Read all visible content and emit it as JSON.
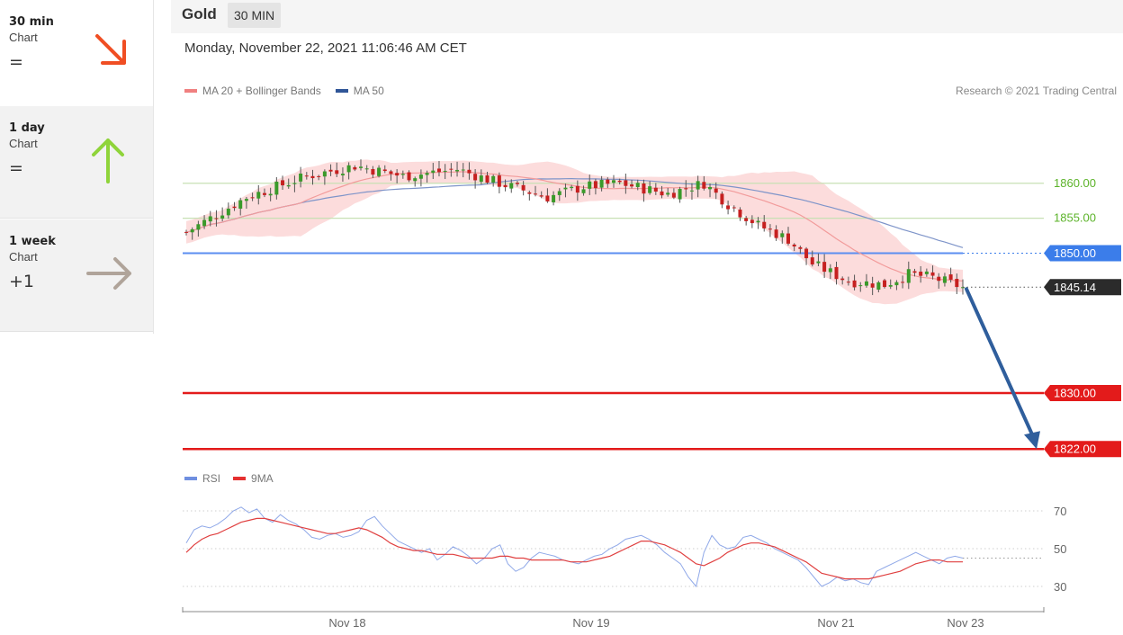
{
  "sidebar": {
    "items": [
      {
        "title": "30 min",
        "subtitle": "Chart",
        "score": "=",
        "icon": "arrow-down-right-icon",
        "color": "#f04e23"
      },
      {
        "title": "1 day",
        "subtitle": "Chart",
        "score": "=",
        "icon": "arrow-up-icon",
        "color": "#8fd43a"
      },
      {
        "title": "1 week",
        "subtitle": "Chart",
        "score": "+1",
        "icon": "arrow-right-icon",
        "color": "#b0a49a"
      }
    ]
  },
  "header": {
    "asset": "Gold",
    "timeframe": "30 MIN",
    "timestamp": "Monday, November 22, 2021 11:06:46 AM CET",
    "copyright": "Research © 2021 Trading Central"
  },
  "legend": [
    {
      "label": "MA 20 + Bollinger Bands",
      "color": "#f08080"
    },
    {
      "label": "MA 50",
      "color": "#2f5597"
    }
  ],
  "rsi_legend": [
    {
      "label": "RSI",
      "color": "#6f8fe0"
    },
    {
      "label": "9MA",
      "color": "#e53030"
    }
  ],
  "chart_data": {
    "type": "candlestick",
    "x_ticks": [
      "Nov 18",
      "Nov 19",
      "Nov 21",
      "Nov 23"
    ],
    "ylim": [
      1820,
      1866
    ],
    "levels": [
      {
        "label": "1860.00",
        "value": 1860,
        "kind": "resistance",
        "color": "#9cc87a"
      },
      {
        "label": "1855.00",
        "value": 1855,
        "kind": "resistance",
        "color": "#9cc87a"
      },
      {
        "label": "1850.00",
        "value": 1850,
        "kind": "pivot",
        "color": "#3b7dea"
      },
      {
        "label": "1830.00",
        "value": 1830,
        "kind": "support",
        "color": "#e31b1b"
      },
      {
        "label": "1822.00",
        "value": 1822,
        "kind": "support",
        "color": "#e31b1b"
      }
    ],
    "last_price": {
      "label": "1845.14",
      "value": 1845.14
    },
    "forecast": {
      "from": 1845.14,
      "to": 1822
    },
    "rsi": {
      "ticks": [
        70,
        50,
        30
      ],
      "ylim": [
        20,
        80
      ],
      "rsi_values": [
        53,
        60,
        62,
        61,
        63,
        66,
        70,
        72,
        69,
        71,
        66,
        64,
        68,
        65,
        63,
        60,
        56,
        55,
        57,
        58,
        56,
        57,
        59,
        65,
        67,
        62,
        58,
        54,
        52,
        50,
        48,
        50,
        44,
        47,
        51,
        49,
        46,
        42,
        45,
        50,
        52,
        42,
        38,
        40,
        45,
        48,
        47,
        46,
        44,
        43,
        42,
        44,
        46,
        47,
        50,
        52,
        55,
        56,
        57,
        55,
        52,
        48,
        45,
        42,
        35,
        30,
        48,
        57,
        52,
        50,
        51,
        56,
        57,
        55,
        53,
        50,
        48,
        46,
        44,
        40,
        35,
        30,
        32,
        35,
        33,
        34,
        32,
        31,
        38,
        40,
        42,
        44,
        46,
        48,
        46,
        44,
        42,
        45,
        46,
        45
      ],
      "ma_values": [
        48,
        52,
        55,
        57,
        58,
        60,
        62,
        64,
        65,
        66,
        66,
        65,
        64,
        63,
        62,
        61,
        60,
        59,
        58,
        58,
        59,
        60,
        61,
        60,
        58,
        56,
        53,
        51,
        50,
        49,
        49,
        48,
        47,
        47,
        47,
        46,
        45,
        45,
        45,
        45,
        46,
        46,
        45,
        45,
        44,
        44,
        44,
        44,
        44,
        43,
        43,
        43,
        44,
        45,
        46,
        48,
        50,
        52,
        54,
        54,
        53,
        52,
        50,
        48,
        45,
        42,
        41,
        43,
        45,
        48,
        50,
        52,
        53,
        53,
        52,
        51,
        49,
        47,
        45,
        43,
        40,
        37,
        36,
        35,
        34,
        34,
        34,
        34,
        35,
        36,
        37,
        38,
        40,
        42,
        43,
        44,
        44,
        43,
        43,
        43
      ]
    }
  }
}
